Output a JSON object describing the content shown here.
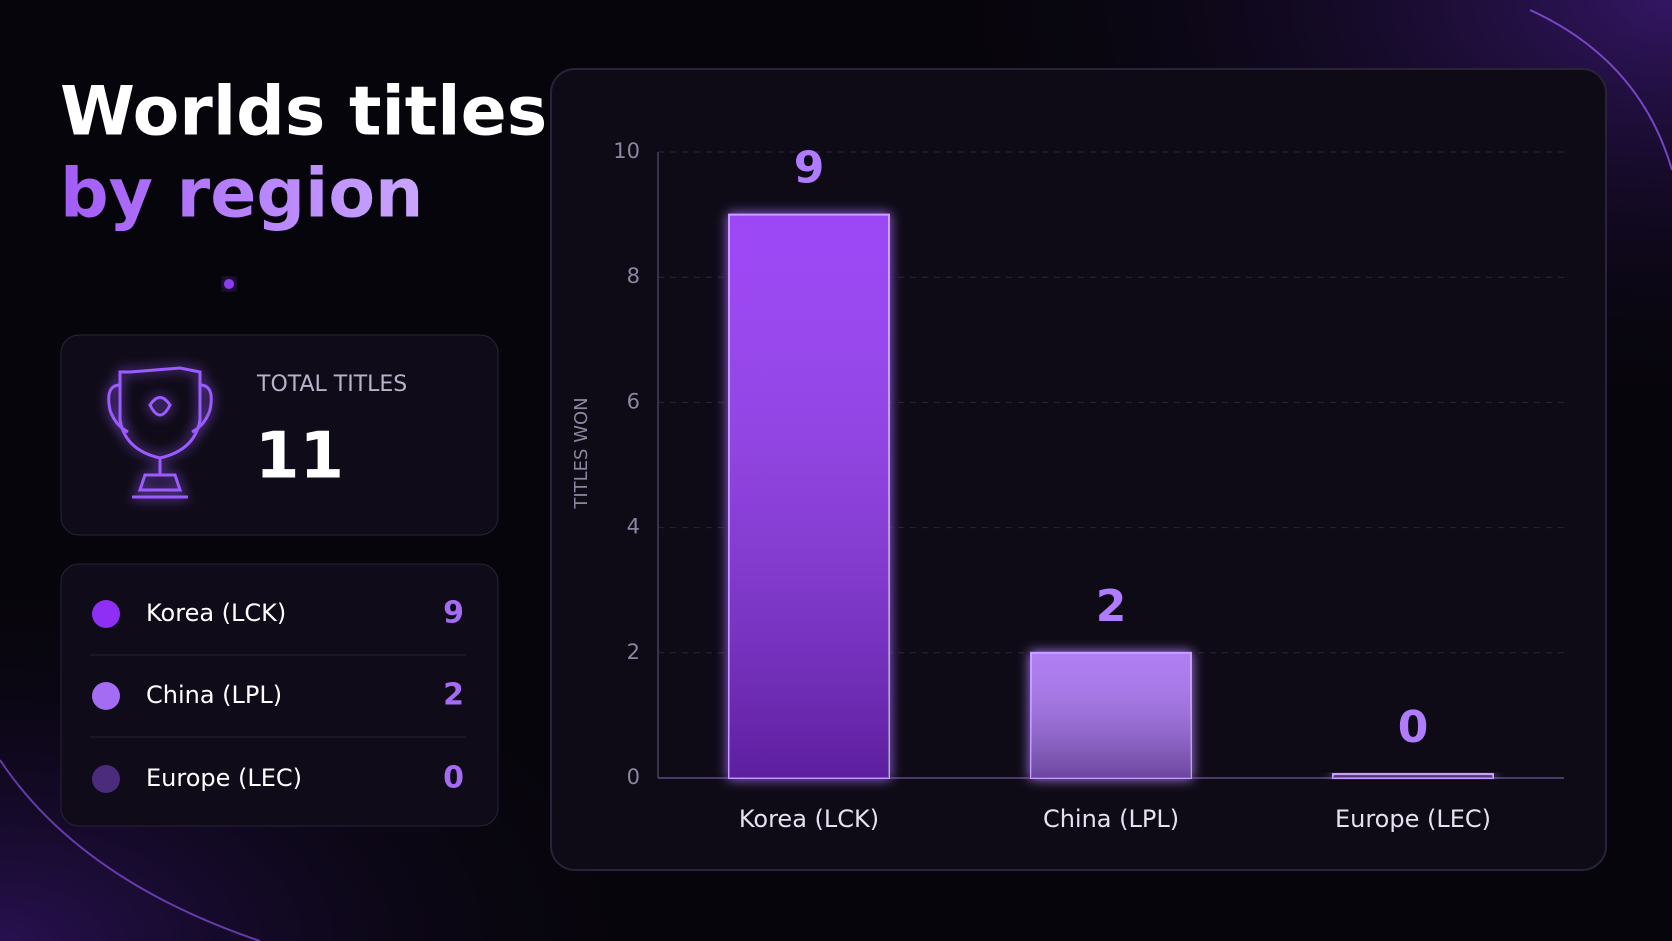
{
  "title_line1": "Worlds titles",
  "title_line2": "by region",
  "summary": {
    "label": "TOTAL TITLES",
    "value": 11
  },
  "chart_data": {
    "type": "bar",
    "y_label": "TITLES WON",
    "categories": [
      "Korea (LCK)",
      "China (LPL)",
      "Europe (LEC)"
    ],
    "values": [
      9,
      2,
      0
    ],
    "colors": [
      "#8f2ff5",
      "#a46cf2",
      "#4b2c7c"
    ],
    "ylim": [
      0,
      10
    ],
    "yticks": [
      0,
      2,
      4,
      6,
      8,
      10
    ],
    "grid": true
  }
}
